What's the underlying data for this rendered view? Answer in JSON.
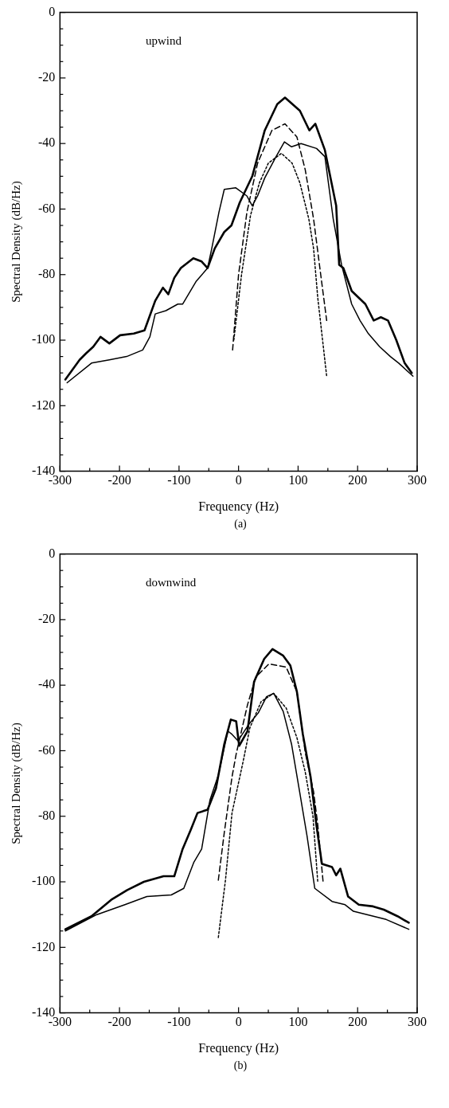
{
  "chart_data": [
    {
      "type": "line",
      "xlabel": "Frequency (Hz)",
      "ylabel": "Spectral Density (dB/Hz)",
      "annotations": [
        "upwind",
        "(a)"
      ],
      "xlim": [
        -300,
        300
      ],
      "ylim": [
        -140,
        0
      ],
      "xticks": [
        -300,
        {
          "value": -250,
          "label": null
        },
        -200,
        {
          "value": -150,
          "label": null
        },
        -100,
        {
          "value": -50,
          "label": null
        },
        0,
        {
          "value": 50,
          "label": null
        },
        100,
        {
          "value": 150,
          "label": null
        },
        200,
        {
          "value": 250,
          "label": null
        },
        300
      ],
      "yticks": [
        -140,
        {
          "value": -135,
          "label": null
        },
        {
          "value": -130,
          "label": null
        },
        {
          "value": -125,
          "label": null
        },
        -120,
        {
          "value": -115,
          "label": null
        },
        {
          "value": -110,
          "label": null
        },
        {
          "value": -105,
          "label": null
        },
        -100,
        {
          "value": -95,
          "label": null
        },
        {
          "value": -90,
          "label": null
        },
        {
          "value": -85,
          "label": null
        },
        -80,
        {
          "value": -75,
          "label": null
        },
        {
          "value": -70,
          "label": null
        },
        {
          "value": -65,
          "label": null
        },
        -60,
        {
          "value": -55,
          "label": null
        },
        {
          "value": -50,
          "label": null
        },
        {
          "value": -45,
          "label": null
        },
        -40,
        {
          "value": -35,
          "label": null
        },
        {
          "value": -30,
          "label": null
        },
        {
          "value": -25,
          "label": null
        },
        -20,
        {
          "value": -15,
          "label": null
        },
        {
          "value": -10,
          "label": null
        },
        {
          "value": -5,
          "label": null
        },
        0
      ],
      "grid": false,
      "legend": false,
      "marker": "none",
      "series": [
        {
          "color": "#000000",
          "line_style": "solid",
          "x": [
            -291,
            -267,
            -256,
            -244,
            -232,
            -217,
            -199,
            -176,
            -158,
            -140,
            -127,
            -118,
            -108,
            -97,
            -76,
            -62,
            -52,
            -40,
            -24,
            -12,
            2,
            23,
            32,
            44,
            65,
            78,
            103,
            119,
            129,
            145,
            164,
            169,
            176,
            190,
            213,
            227,
            239,
            251,
            265,
            279,
            291
          ],
          "values": [
            -112,
            -106,
            -104,
            -102,
            -99,
            -101,
            -98.5,
            -98,
            -97,
            -88,
            -84,
            -86,
            -81,
            -78,
            -75,
            -76,
            -78,
            -72,
            -67,
            -65,
            -58,
            -50,
            -44,
            -36,
            -28,
            -26,
            -30,
            -36,
            -34,
            -42,
            -59,
            -77,
            -78,
            -85,
            -89,
            -94,
            -93,
            -94,
            -100,
            -107,
            -110
          ]
        },
        {
          "color": "#000000",
          "line_style": "solid",
          "x": [
            -288,
            -247,
            -217,
            -188,
            -161,
            -149,
            -140,
            -122,
            -102,
            -94,
            -71,
            -52,
            -45,
            -33,
            -24,
            -5,
            14,
            23,
            32,
            44,
            63,
            77,
            89,
            105,
            131,
            145,
            159,
            173,
            190,
            204,
            218,
            237,
            255,
            269,
            293
          ],
          "values": [
            -113,
            -107,
            -106,
            -105,
            -103,
            -99,
            -92,
            -91,
            -89,
            -89,
            -82,
            -78,
            -72,
            -61,
            -54,
            -53.5,
            -56,
            -59,
            -56,
            -50.5,
            -44,
            -39.5,
            -41,
            -40,
            -41.5,
            -44,
            -63,
            -77,
            -89,
            -94,
            -98,
            -102,
            -105,
            -107,
            -111
          ]
        },
        {
          "color": "#000000",
          "line_style": "dashed",
          "x": [
            -10,
            0,
            14,
            32,
            56,
            78,
            98,
            112,
            126,
            138,
            148
          ],
          "values": [
            -103,
            -80,
            -61,
            -46,
            -36,
            -34,
            -38,
            -48,
            -63,
            -80,
            -94
          ]
        },
        {
          "color": "#000000",
          "line_style": "dotted",
          "x": [
            -8,
            5,
            20,
            35,
            50,
            72,
            90,
            103,
            118,
            126,
            133,
            148
          ],
          "values": [
            -100,
            -80,
            -62,
            -52,
            -46,
            -43,
            -46,
            -52,
            -63,
            -72,
            -87,
            -111
          ]
        }
      ]
    },
    {
      "type": "line",
      "xlabel": "Frequency (Hz)",
      "ylabel": "Spectral Density (dB/Hz)",
      "annotations": [
        "downwind",
        "(b)"
      ],
      "xlim": [
        -300,
        300
      ],
      "ylim": [
        -140,
        0
      ],
      "xticks": [
        -300,
        {
          "value": -250,
          "label": null
        },
        -200,
        {
          "value": -150,
          "label": null
        },
        -100,
        {
          "value": -50,
          "label": null
        },
        0,
        {
          "value": 50,
          "label": null
        },
        100,
        {
          "value": 150,
          "label": null
        },
        200,
        {
          "value": 250,
          "label": null
        },
        300
      ],
      "yticks": [
        -140,
        {
          "value": -135,
          "label": null
        },
        {
          "value": -130,
          "label": null
        },
        {
          "value": -125,
          "label": null
        },
        -120,
        {
          "value": -115,
          "label": null
        },
        {
          "value": -110,
          "label": null
        },
        {
          "value": -105,
          "label": null
        },
        -100,
        {
          "value": -95,
          "label": null
        },
        {
          "value": -90,
          "label": null
        },
        {
          "value": -85,
          "label": null
        },
        -80,
        {
          "value": -75,
          "label": null
        },
        {
          "value": -70,
          "label": null
        },
        {
          "value": -65,
          "label": null
        },
        -60,
        {
          "value": -55,
          "label": null
        },
        {
          "value": -50,
          "label": null
        },
        {
          "value": -45,
          "label": null
        },
        -40,
        {
          "value": -35,
          "label": null
        },
        {
          "value": -30,
          "label": null
        },
        {
          "value": -25,
          "label": null
        },
        -20,
        {
          "value": -15,
          "label": null
        },
        {
          "value": -10,
          "label": null
        },
        {
          "value": -5,
          "label": null
        },
        0
      ],
      "grid": false,
      "legend": false,
      "marker": "none",
      "series": [
        {
          "color": "#000000",
          "line_style": "solid",
          "x": [
            -291,
            -247,
            -214,
            -187,
            -159,
            -126,
            -108,
            -94,
            -80,
            -69,
            -52,
            -38,
            -24,
            -13,
            -4,
            1,
            15,
            26,
            43,
            57,
            75,
            87,
            98,
            108,
            121,
            131,
            140,
            157,
            164,
            171,
            184,
            202,
            226,
            244,
            267,
            286
          ],
          "values": [
            -114.5,
            -110.5,
            -105.5,
            -102.5,
            -100,
            -98.3,
            -98.3,
            -90,
            -84,
            -79,
            -78,
            -71.5,
            -58,
            -50.5,
            -51,
            -58.5,
            -54,
            -39,
            -32,
            -29,
            -31,
            -34,
            -42,
            -55,
            -68,
            -83,
            -94.5,
            -95.5,
            -98,
            -96,
            -104.5,
            -107,
            -107.5,
            -108.5,
            -110.5,
            -112.5
          ]
        },
        {
          "color": "#000000",
          "line_style": "solid",
          "x": [
            -291,
            -238,
            -191,
            -154,
            -113,
            -92,
            -75,
            -62,
            -48,
            -34,
            -18,
            -11,
            -1,
            17,
            33,
            47,
            59,
            75,
            89,
            103,
            115,
            128,
            157,
            179,
            193,
            248,
            286
          ],
          "values": [
            -115,
            -110,
            -107,
            -104.5,
            -104,
            -102,
            -94,
            -90,
            -75,
            -67.5,
            -54,
            -55,
            -57,
            -52,
            -48.5,
            -43.5,
            -42.5,
            -48,
            -58,
            -73,
            -86,
            -102,
            -106,
            -107,
            -109,
            -111.5,
            -114.5
          ]
        },
        {
          "color": "#000000",
          "line_style": "dashed",
          "x": [
            -34,
            -24,
            -11,
            -4,
            15,
            29,
            51,
            80,
            98,
            112,
            126,
            133,
            142
          ],
          "values": [
            -99.5,
            -85,
            -68,
            -61,
            -46,
            -37.5,
            -33.5,
            -34.5,
            -42,
            -60.5,
            -72.5,
            -82.5,
            -100
          ]
        },
        {
          "color": "#000000",
          "line_style": "dotted",
          "x": [
            -34,
            -22,
            -11,
            8,
            19,
            38,
            59,
            80,
            98,
            112,
            125,
            133
          ],
          "values": [
            -117,
            -99.5,
            -79,
            -63,
            -53,
            -45,
            -42.5,
            -47,
            -56,
            -66.5,
            -80,
            -100
          ]
        }
      ]
    }
  ]
}
